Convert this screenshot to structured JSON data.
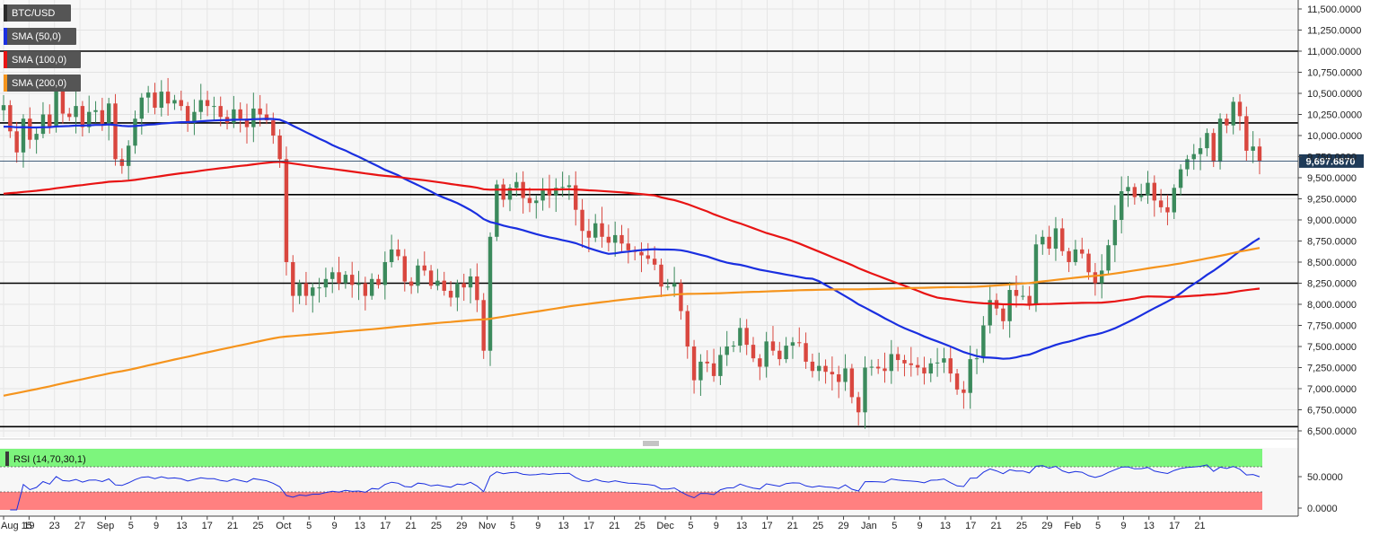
{
  "chart_data": {
    "type": "candlestick",
    "symbol": "BTC/USD",
    "last_price": 9697.687,
    "last_price_label": "9,697.6870",
    "ylim": [
      6500,
      11500
    ],
    "y_ticks": [
      "11,500.0000",
      "11,250.0000",
      "11,000.0000",
      "10,750.0000",
      "10,500.0000",
      "10,250.0000",
      "10,000.0000",
      "9,750.0000",
      "9,500.0000",
      "9,250.0000",
      "9,000.0000",
      "8,750.0000",
      "8,500.0000",
      "8,250.0000",
      "8,000.0000",
      "7,750.0000",
      "7,500.0000",
      "7,250.0000",
      "7,000.0000",
      "6,750.0000",
      "6,500.0000"
    ],
    "x_ticks": [
      "Aug 15",
      "19",
      "23",
      "27",
      "Sep",
      "5",
      "9",
      "13",
      "17",
      "21",
      "25",
      "Oct",
      "5",
      "9",
      "13",
      "17",
      "21",
      "25",
      "29",
      "Nov",
      "5",
      "9",
      "13",
      "17",
      "21",
      "25",
      "Dec",
      "5",
      "9",
      "13",
      "17",
      "21",
      "25",
      "29",
      "Jan",
      "5",
      "9",
      "13",
      "17",
      "21",
      "25",
      "29",
      "Feb",
      "5",
      "9",
      "13",
      "17",
      "21"
    ],
    "horizontal_levels": [
      11000,
      10150,
      9300,
      8250,
      6550
    ],
    "indicators": [
      {
        "name": "SMA (50,0)",
        "color": "#1a2fe0"
      },
      {
        "name": "SMA (100,0)",
        "color": "#e81414"
      },
      {
        "name": "SMA (200,0)",
        "color": "#f5941d"
      }
    ],
    "candles_close": [
      10360,
      10050,
      9800,
      10200,
      9950,
      10020,
      10250,
      10100,
      10550,
      10260,
      10220,
      10350,
      10100,
      10280,
      10300,
      10140,
      10380,
      9720,
      9640,
      9880,
      10200,
      10450,
      10510,
      10330,
      10520,
      10380,
      10420,
      10350,
      10150,
      10280,
      10420,
      10350,
      10350,
      10220,
      10150,
      10310,
      10200,
      10100,
      10320,
      10250,
      10180,
      10000,
      9720,
      8500,
      8100,
      8250,
      8100,
      8200,
      8200,
      8300,
      8380,
      8250,
      8350,
      8230,
      8250,
      8100,
      8300,
      8230,
      8500,
      8650,
      8570,
      8270,
      8220,
      8460,
      8400,
      8220,
      8280,
      8160,
      8080,
      8250,
      8200,
      8330,
      8050,
      7450,
      8800,
      9420,
      9240,
      9380,
      9450,
      9260,
      9200,
      9230,
      9350,
      9290,
      9380,
      9390,
      9410,
      9120,
      8870,
      8790,
      8960,
      8800,
      8730,
      8820,
      8720,
      8640,
      8620,
      8580,
      8540,
      8470,
      8210,
      8210,
      8250,
      7920,
      7500,
      7100,
      7320,
      7300,
      7150,
      7400,
      7500,
      7510,
      7720,
      7520,
      7360,
      7260,
      7560,
      7450,
      7350,
      7510,
      7550,
      7540,
      7320,
      7210,
      7270,
      7200,
      7170,
      7080,
      7240,
      6900,
      6720,
      7250,
      7260,
      7240,
      7210,
      7410,
      7340,
      7300,
      7280,
      7250,
      7180,
      7300,
      7310,
      7360,
      7180,
      6990,
      6950,
      7350,
      7360,
      7750,
      8050,
      7950,
      7800,
      8170,
      8100,
      8100,
      8000,
      8710,
      8800,
      8660,
      8900,
      8630,
      8500,
      8650,
      8600,
      8380,
      8250,
      8400,
      8700,
      9000,
      9340,
      9390,
      9270,
      9290,
      9440,
      9230,
      9150,
      9090,
      9380,
      9600,
      9720,
      9780,
      9850,
      10030,
      9690,
      10200,
      10120,
      10400,
      10230,
      9820,
      9870,
      9700
    ]
  },
  "rsi": {
    "label": "RSI (14,70,30,1)",
    "ticks": [
      "50.0000",
      "0.0000"
    ],
    "upper_zone_color": "#7df57d",
    "lower_zone_color": "#ff8080"
  }
}
